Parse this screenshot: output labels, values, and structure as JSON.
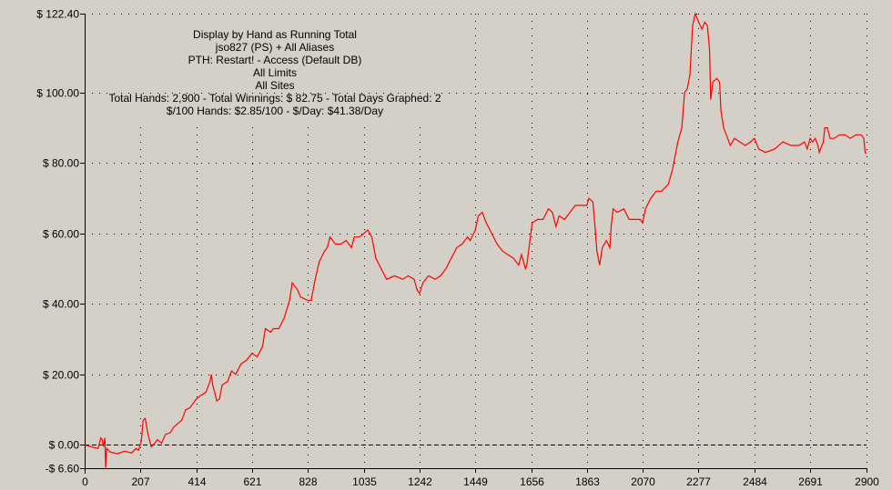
{
  "chart_data": {
    "type": "line",
    "header_lines": [
      "Display by Hand as Running Total",
      "jso827 (PS) + All Aliases",
      "PTH: Restart! - Access (Default DB)",
      "All Limits",
      "All Sites",
      "Total Hands: 2,900 - Total Winnings: $ 82.75 - Total Days Graphed: 2",
      "$/100 Hands: $2.85/100 - $/Day: $41.38/Day"
    ],
    "x_tick_values": [
      0,
      207,
      414,
      621,
      828,
      1035,
      1242,
      1449,
      1656,
      1863,
      2070,
      2277,
      2484,
      2691,
      2900
    ],
    "x_tick_labels": [
      "0",
      "207",
      "414",
      "621",
      "828",
      "1035",
      "1242",
      "1449",
      "1656",
      "1863",
      "2070",
      "2277",
      "2484",
      "2691",
      "2900"
    ],
    "y_tick_values": [
      -6.6,
      0,
      20,
      40,
      60,
      80,
      100,
      122.4
    ],
    "y_tick_labels": [
      "-$ 6.60",
      "$ 0.00",
      "$ 20.00",
      "$ 40.00",
      "$ 60.00",
      "$ 80.00",
      "$ 100.00",
      "$ 122.40"
    ],
    "xlim": [
      0,
      2900
    ],
    "ylim": [
      -6.6,
      122.4
    ],
    "grid": true,
    "colors": {
      "background": "#d4d0c8",
      "line": "#ff0000",
      "grid": "#000000"
    },
    "series": [
      {
        "values": [
          [
            0,
            0
          ],
          [
            25,
            -0.5
          ],
          [
            50,
            -1
          ],
          [
            60,
            2
          ],
          [
            65,
            1.5
          ],
          [
            70,
            -0.5
          ],
          [
            75,
            2
          ],
          [
            78,
            -6.5
          ],
          [
            82,
            -1
          ],
          [
            95,
            -2
          ],
          [
            120,
            -2.5
          ],
          [
            150,
            -1.8
          ],
          [
            175,
            -2.3
          ],
          [
            190,
            -1
          ],
          [
            200,
            -1.5
          ],
          [
            210,
            1
          ],
          [
            217,
            7
          ],
          [
            225,
            7.5
          ],
          [
            235,
            3
          ],
          [
            247,
            -0.5
          ],
          [
            260,
            0.5
          ],
          [
            270,
            1.5
          ],
          [
            285,
            0.5
          ],
          [
            300,
            3
          ],
          [
            318,
            3.5
          ],
          [
            330,
            5
          ],
          [
            360,
            7
          ],
          [
            375,
            10
          ],
          [
            390,
            10.5
          ],
          [
            414,
            13
          ],
          [
            430,
            14
          ],
          [
            450,
            15
          ],
          [
            465,
            18
          ],
          [
            470,
            20
          ],
          [
            475,
            17
          ],
          [
            482,
            15
          ],
          [
            490,
            12.5
          ],
          [
            500,
            13
          ],
          [
            510,
            17
          ],
          [
            530,
            18
          ],
          [
            545,
            21
          ],
          [
            560,
            20
          ],
          [
            580,
            23
          ],
          [
            600,
            24
          ],
          [
            621,
            26
          ],
          [
            640,
            25
          ],
          [
            660,
            28
          ],
          [
            670,
            33
          ],
          [
            690,
            32
          ],
          [
            700,
            33
          ],
          [
            720,
            33
          ],
          [
            740,
            36
          ],
          [
            760,
            41
          ],
          [
            770,
            46
          ],
          [
            790,
            44
          ],
          [
            800,
            42
          ],
          [
            828,
            41
          ],
          [
            840,
            41
          ],
          [
            855,
            47
          ],
          [
            870,
            52
          ],
          [
            890,
            55
          ],
          [
            900,
            56
          ],
          [
            910,
            59
          ],
          [
            930,
            57
          ],
          [
            950,
            57
          ],
          [
            970,
            58
          ],
          [
            990,
            56
          ],
          [
            1000,
            59
          ],
          [
            1020,
            59
          ],
          [
            1035,
            60
          ],
          [
            1050,
            61
          ],
          [
            1065,
            59
          ],
          [
            1080,
            53
          ],
          [
            1100,
            50
          ],
          [
            1120,
            47
          ],
          [
            1150,
            48
          ],
          [
            1180,
            47
          ],
          [
            1200,
            48
          ],
          [
            1222,
            47
          ],
          [
            1233,
            44
          ],
          [
            1242,
            43
          ],
          [
            1255,
            46
          ],
          [
            1275,
            48
          ],
          [
            1300,
            47
          ],
          [
            1320,
            48
          ],
          [
            1340,
            50
          ],
          [
            1360,
            53
          ],
          [
            1380,
            56
          ],
          [
            1400,
            57
          ],
          [
            1420,
            59
          ],
          [
            1430,
            58
          ],
          [
            1449,
            61
          ],
          [
            1460,
            65
          ],
          [
            1475,
            66
          ],
          [
            1490,
            63
          ],
          [
            1510,
            60
          ],
          [
            1530,
            57
          ],
          [
            1550,
            55
          ],
          [
            1570,
            54
          ],
          [
            1590,
            53
          ],
          [
            1610,
            51
          ],
          [
            1620,
            54
          ],
          [
            1635,
            50
          ],
          [
            1640,
            51
          ],
          [
            1660,
            63
          ],
          [
            1680,
            64
          ],
          [
            1700,
            64
          ],
          [
            1720,
            67
          ],
          [
            1735,
            66
          ],
          [
            1748,
            62
          ],
          [
            1760,
            65
          ],
          [
            1780,
            64
          ],
          [
            1800,
            66
          ],
          [
            1820,
            68
          ],
          [
            1840,
            68
          ],
          [
            1863,
            68
          ],
          [
            1870,
            70
          ],
          [
            1885,
            69
          ],
          [
            1893,
            62
          ],
          [
            1900,
            55
          ],
          [
            1910,
            51
          ],
          [
            1920,
            56
          ],
          [
            1935,
            58
          ],
          [
            1948,
            56
          ],
          [
            1953,
            62
          ],
          [
            1960,
            67
          ],
          [
            1975,
            66
          ],
          [
            2000,
            67
          ],
          [
            2020,
            64
          ],
          [
            2040,
            64
          ],
          [
            2060,
            64
          ],
          [
            2070,
            63
          ],
          [
            2080,
            67
          ],
          [
            2100,
            70
          ],
          [
            2120,
            72
          ],
          [
            2140,
            72
          ],
          [
            2165,
            74
          ],
          [
            2180,
            78
          ],
          [
            2190,
            82
          ],
          [
            2200,
            86
          ],
          [
            2215,
            90
          ],
          [
            2225,
            100
          ],
          [
            2235,
            101
          ],
          [
            2245,
            105
          ],
          [
            2255,
            119
          ],
          [
            2265,
            122.4
          ],
          [
            2277,
            120
          ],
          [
            2290,
            118
          ],
          [
            2300,
            120
          ],
          [
            2310,
            119
          ],
          [
            2318,
            112
          ],
          [
            2322,
            98
          ],
          [
            2330,
            103
          ],
          [
            2345,
            104
          ],
          [
            2355,
            103
          ],
          [
            2360,
            95
          ],
          [
            2370,
            90
          ],
          [
            2380,
            88
          ],
          [
            2395,
            85
          ],
          [
            2410,
            87
          ],
          [
            2430,
            86
          ],
          [
            2450,
            85
          ],
          [
            2470,
            86
          ],
          [
            2484,
            87
          ],
          [
            2500,
            84
          ],
          [
            2525,
            83
          ],
          [
            2560,
            84
          ],
          [
            2590,
            86
          ],
          [
            2620,
            85
          ],
          [
            2650,
            85
          ],
          [
            2670,
            86
          ],
          [
            2680,
            84
          ],
          [
            2691,
            87
          ],
          [
            2700,
            86
          ],
          [
            2710,
            87
          ],
          [
            2720,
            85
          ],
          [
            2725,
            83
          ],
          [
            2730,
            84
          ],
          [
            2740,
            86
          ],
          [
            2745,
            90
          ],
          [
            2755,
            90
          ],
          [
            2765,
            87
          ],
          [
            2780,
            87
          ],
          [
            2800,
            88
          ],
          [
            2820,
            88
          ],
          [
            2840,
            87
          ],
          [
            2860,
            88
          ],
          [
            2880,
            88
          ],
          [
            2890,
            87
          ],
          [
            2895,
            83
          ],
          [
            2900,
            82.75
          ]
        ]
      }
    ]
  }
}
